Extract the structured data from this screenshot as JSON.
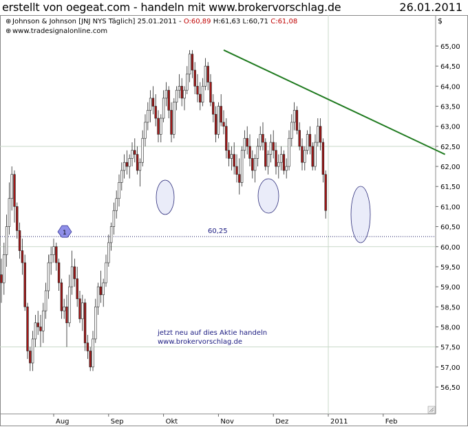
{
  "header": {
    "left_text": "erstellt von oegeat.com - handeln mit www.brokervorschlag.de",
    "date": "26.01.2011"
  },
  "legend": {
    "symbol_line": "Johnson & Johnson [JNJ NYS  Täglich] 25.01.2011 - ",
    "open": "O:60,89",
    "high": "H:61,63",
    "low": "L:60,71",
    "close": "C:61,08",
    "website": "www.tradesignalonline.com",
    "currency": "$"
  },
  "annotations": {
    "level_label": "60,25",
    "note_line1": "jetzt neu auf dies Aktie handeln",
    "note_line2": "www.brokervorschlag.de",
    "marker_label": "1"
  },
  "colors": {
    "up": "#ffffff",
    "down": "#a01818",
    "trendline": "#1f7a1f",
    "ellipse_fill": "#d8dcf4",
    "ellipse_stroke": "#2b2b7a",
    "grid": "#c8d8c8",
    "text_blue": "#1a1a80"
  },
  "chart_data": {
    "type": "candlestick",
    "title": "Johnson & Johnson [JNJ NYS Täglich]",
    "ylabel": "$",
    "ylim": [
      56.2,
      65.2
    ],
    "yticks": [
      "56,50",
      "57,00",
      "57,50",
      "58,00",
      "58,50",
      "59,00",
      "59,50",
      "60,00",
      "60,50",
      "61,00",
      "61,50",
      "62,00",
      "62,50",
      "63,00",
      "63,50",
      "64,00",
      "64,50",
      "65,00"
    ],
    "ytick_values": [
      56.5,
      57.0,
      57.5,
      58.0,
      58.5,
      59.0,
      59.5,
      60.0,
      60.5,
      61.0,
      61.5,
      62.0,
      62.5,
      63.0,
      63.5,
      64.0,
      64.5,
      65.0
    ],
    "xticks": [
      {
        "label": "Aug",
        "index": 20
      },
      {
        "label": "Sep",
        "index": 41
      },
      {
        "label": "Okt",
        "index": 62
      },
      {
        "label": "Nov",
        "index": 83
      },
      {
        "label": "Dez",
        "index": 104
      },
      {
        "label": "2011",
        "index": 125
      },
      {
        "label": "Feb",
        "index": 146
      }
    ],
    "grid": "horizontal at 62,50 / 60,00 / 57,50 and vertical at 2011",
    "horizontal_level": 60.25,
    "trendline": {
      "from": {
        "index": 85,
        "value": 64.9
      },
      "to": {
        "index": 167,
        "value": 62.3
      }
    },
    "highlight_ellipses": [
      {
        "index": 63,
        "value": 61.55
      },
      {
        "index": 103,
        "value": 61.55
      },
      {
        "index": 140,
        "value": 60.9
      }
    ],
    "marker": {
      "index": 24,
      "value": 60.25,
      "label": "1"
    },
    "last_bar": {
      "open": 60.89,
      "high": 61.63,
      "low": 60.71,
      "close": 61.08
    },
    "candles": [
      [
        59.3,
        59.7,
        58.6,
        59.1
      ],
      [
        59.1,
        60.1,
        58.8,
        59.8
      ],
      [
        59.8,
        60.8,
        59.5,
        60.5
      ],
      [
        60.5,
        61.6,
        60.3,
        61.2
      ],
      [
        61.2,
        62.0,
        60.9,
        61.8
      ],
      [
        61.8,
        61.9,
        60.6,
        61.0
      ],
      [
        61.0,
        61.1,
        60.2,
        60.4
      ],
      [
        60.4,
        60.6,
        59.7,
        59.9
      ],
      [
        59.9,
        60.2,
        59.3,
        59.6
      ],
      [
        59.6,
        59.8,
        58.4,
        58.5
      ],
      [
        58.5,
        58.6,
        57.2,
        57.4
      ],
      [
        57.4,
        57.5,
        56.9,
        57.1
      ],
      [
        57.1,
        57.9,
        56.9,
        57.7
      ],
      [
        57.7,
        58.3,
        57.5,
        58.1
      ],
      [
        58.1,
        58.4,
        57.8,
        58.0
      ],
      [
        58.0,
        58.3,
        57.5,
        57.9
      ],
      [
        57.9,
        58.6,
        57.6,
        58.4
      ],
      [
        58.4,
        59.1,
        58.2,
        58.9
      ],
      [
        58.9,
        59.8,
        58.7,
        59.6
      ],
      [
        59.6,
        60.0,
        59.3,
        59.8
      ],
      [
        59.8,
        60.2,
        59.6,
        60.0
      ],
      [
        60.0,
        60.1,
        59.4,
        59.6
      ],
      [
        59.6,
        59.7,
        58.9,
        59.1
      ],
      [
        59.1,
        59.2,
        58.2,
        58.4
      ],
      [
        58.4,
        58.7,
        58.2,
        58.5
      ],
      [
        58.5,
        58.8,
        57.5,
        58.1
      ],
      [
        58.1,
        59.3,
        58.0,
        59.0
      ],
      [
        59.0,
        59.9,
        58.8,
        59.5
      ],
      [
        59.5,
        59.7,
        59.0,
        59.2
      ],
      [
        59.2,
        59.5,
        58.5,
        58.7
      ],
      [
        58.7,
        58.9,
        58.1,
        58.2
      ],
      [
        58.2,
        58.8,
        57.9,
        58.6
      ],
      [
        58.6,
        58.7,
        57.4,
        57.6
      ],
      [
        57.6,
        57.8,
        57.2,
        57.4
      ],
      [
        57.4,
        57.5,
        56.9,
        57.0
      ],
      [
        57.0,
        57.9,
        56.9,
        57.7
      ],
      [
        57.7,
        58.7,
        57.6,
        58.5
      ],
      [
        58.5,
        59.1,
        58.3,
        59.0
      ],
      [
        59.0,
        59.4,
        58.6,
        58.8
      ],
      [
        58.8,
        59.2,
        58.5,
        59.1
      ],
      [
        59.1,
        59.8,
        59.0,
        59.6
      ],
      [
        59.6,
        60.3,
        59.5,
        60.1
      ],
      [
        60.1,
        60.6,
        59.9,
        60.5
      ],
      [
        60.5,
        61.1,
        60.3,
        60.9
      ],
      [
        60.9,
        61.4,
        60.7,
        61.2
      ],
      [
        61.2,
        61.8,
        61.0,
        61.6
      ],
      [
        61.6,
        62.1,
        61.4,
        61.9
      ],
      [
        61.9,
        62.3,
        61.7,
        62.1
      ],
      [
        62.1,
        62.4,
        61.8,
        62.0
      ],
      [
        62.0,
        62.3,
        61.7,
        62.2
      ],
      [
        62.2,
        62.6,
        62.0,
        62.4
      ],
      [
        62.4,
        62.7,
        62.1,
        62.3
      ],
      [
        62.3,
        62.5,
        61.8,
        61.9
      ],
      [
        61.9,
        62.2,
        61.5,
        62.1
      ],
      [
        62.1,
        62.9,
        62.0,
        62.7
      ],
      [
        62.7,
        63.3,
        62.5,
        63.1
      ],
      [
        63.1,
        63.6,
        62.9,
        63.4
      ],
      [
        63.4,
        63.9,
        63.1,
        63.7
      ],
      [
        63.7,
        64.0,
        63.3,
        63.5
      ],
      [
        63.5,
        63.8,
        63.0,
        63.2
      ],
      [
        63.2,
        63.4,
        62.6,
        62.8
      ],
      [
        62.8,
        63.3,
        62.6,
        63.2
      ],
      [
        63.2,
        63.9,
        63.1,
        63.7
      ],
      [
        63.7,
        64.1,
        63.5,
        63.9
      ],
      [
        63.9,
        64.0,
        63.2,
        63.4
      ],
      [
        63.4,
        63.6,
        62.6,
        62.8
      ],
      [
        62.8,
        63.7,
        62.7,
        63.6
      ],
      [
        63.6,
        64.0,
        63.4,
        63.9
      ],
      [
        63.9,
        64.3,
        63.7,
        64.0
      ],
      [
        64.0,
        64.2,
        63.5,
        63.7
      ],
      [
        63.7,
        64.0,
        63.4,
        63.9
      ],
      [
        63.9,
        64.5,
        63.8,
        64.3
      ],
      [
        64.3,
        64.9,
        64.1,
        64.8
      ],
      [
        64.8,
        64.9,
        64.2,
        64.4
      ],
      [
        64.4,
        64.6,
        63.8,
        64.0
      ],
      [
        64.0,
        64.3,
        63.6,
        63.8
      ],
      [
        63.8,
        64.1,
        63.4,
        63.6
      ],
      [
        63.6,
        64.2,
        63.5,
        64.0
      ],
      [
        64.0,
        64.7,
        63.9,
        64.5
      ],
      [
        64.5,
        64.6,
        63.9,
        64.1
      ],
      [
        64.1,
        64.3,
        63.5,
        63.6
      ],
      [
        63.6,
        63.8,
        63.1,
        63.3
      ],
      [
        63.3,
        63.5,
        62.6,
        62.8
      ],
      [
        62.8,
        63.6,
        62.7,
        63.5
      ],
      [
        63.5,
        63.8,
        63.0,
        63.1
      ],
      [
        63.1,
        63.4,
        62.8,
        63.0
      ],
      [
        63.0,
        63.2,
        62.2,
        62.4
      ],
      [
        62.4,
        62.6,
        62.0,
        62.2
      ],
      [
        62.2,
        62.5,
        61.9,
        62.3
      ],
      [
        62.3,
        62.6,
        61.8,
        62.0
      ],
      [
        62.0,
        62.3,
        61.6,
        61.8
      ],
      [
        61.8,
        62.2,
        61.3,
        61.6
      ],
      [
        61.6,
        62.5,
        61.5,
        62.4
      ],
      [
        62.4,
        62.9,
        62.2,
        62.7
      ],
      [
        62.7,
        63.0,
        62.3,
        62.5
      ],
      [
        62.5,
        62.8,
        62.0,
        62.2
      ],
      [
        62.2,
        62.4,
        61.7,
        61.9
      ],
      [
        61.9,
        62.3,
        61.6,
        62.2
      ],
      [
        62.2,
        62.7,
        62.0,
        62.5
      ],
      [
        62.5,
        63.0,
        62.4,
        62.8
      ],
      [
        62.8,
        63.1,
        62.4,
        62.6
      ],
      [
        62.6,
        62.7,
        61.9,
        62.0
      ],
      [
        62.0,
        62.4,
        61.8,
        62.3
      ],
      [
        62.3,
        62.8,
        62.1,
        62.6
      ],
      [
        62.6,
        62.9,
        62.2,
        62.4
      ],
      [
        62.4,
        62.6,
        61.8,
        62.0
      ],
      [
        62.0,
        62.3,
        61.7,
        62.1
      ],
      [
        62.1,
        62.5,
        61.9,
        62.3
      ],
      [
        62.3,
        62.4,
        61.8,
        61.9
      ],
      [
        61.9,
        62.2,
        61.7,
        62.0
      ],
      [
        62.0,
        62.9,
        61.9,
        62.7
      ],
      [
        62.7,
        63.3,
        62.5,
        63.1
      ],
      [
        63.1,
        63.6,
        62.9,
        63.4
      ],
      [
        63.4,
        63.5,
        62.8,
        62.9
      ],
      [
        62.9,
        63.1,
        62.4,
        62.5
      ],
      [
        62.5,
        62.7,
        61.9,
        62.1
      ],
      [
        62.1,
        62.5,
        61.9,
        62.4
      ],
      [
        62.4,
        62.9,
        62.3,
        62.8
      ],
      [
        62.8,
        63.0,
        62.3,
        62.5
      ],
      [
        62.5,
        62.6,
        61.9,
        62.0
      ],
      [
        62.0,
        62.8,
        61.9,
        62.6
      ],
      [
        62.6,
        63.2,
        62.5,
        63.0
      ],
      [
        63.0,
        63.2,
        62.4,
        62.6
      ],
      [
        62.6,
        62.7,
        61.6,
        61.8
      ],
      [
        61.8,
        61.9,
        60.7,
        60.9
      ]
    ]
  }
}
